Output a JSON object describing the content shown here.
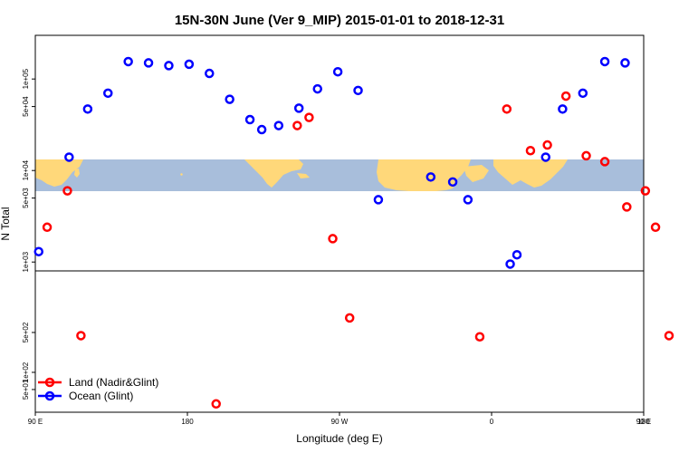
{
  "chart_data": {
    "type": "scatter",
    "title": "15N-30N June (Ver 9_MIP)   2015-01-01 to 2018-12-31",
    "xlabel": "Longitude (deg E)",
    "ylabel": "N Total",
    "x_axis": {
      "range_deg_east": [
        90,
        450
      ],
      "ticks": [
        {
          "value": 90,
          "label": "90 E"
        },
        {
          "value": 180,
          "label": "180"
        },
        {
          "value": 270,
          "label": "90 W"
        },
        {
          "value": 360,
          "label": "0"
        },
        {
          "value": 450,
          "label": "90 E"
        },
        {
          "value": 540,
          "label": "180"
        }
      ]
    },
    "lower_panel": {
      "scale": "log",
      "ylim": [
        20,
        6000
      ],
      "ticks": [
        {
          "value": 50,
          "label": "5e+01"
        },
        {
          "value": 100,
          "label": "1e+02"
        },
        {
          "value": 500,
          "label": "5e+02"
        }
      ]
    },
    "upper_panel": {
      "scale": "log",
      "ylim": [
        800,
        300000
      ],
      "ticks": [
        {
          "value": 1000,
          "label": "1e+03"
        },
        {
          "value": 5000,
          "label": "5e+03"
        },
        {
          "value": 10000,
          "label": "1e+04"
        },
        {
          "value": 50000,
          "label": "5e+04"
        },
        {
          "value": 100000,
          "label": "1e+05"
        }
      ]
    },
    "series": [
      {
        "name": "Land (Nadir&Glint)",
        "color": "#ff0000",
        "points": [
          {
            "lon": 97,
            "panel": "upper",
            "value": 2400
          },
          {
            "lon": 109,
            "panel": "upper",
            "value": 6000
          },
          {
            "lon": 117,
            "panel": "lower",
            "value": 440
          },
          {
            "lon": 197,
            "panel": "lower",
            "value": 28
          },
          {
            "lon": 245,
            "panel": "upper",
            "value": 31000
          },
          {
            "lon": 252,
            "panel": "upper",
            "value": 38000
          },
          {
            "lon": 266,
            "panel": "upper",
            "value": 1800
          },
          {
            "lon": 276,
            "panel": "lower",
            "value": 900
          },
          {
            "lon": 353,
            "panel": "lower",
            "value": 420
          },
          {
            "lon": 369,
            "panel": "upper",
            "value": 47000
          },
          {
            "lon": 383,
            "panel": "upper",
            "value": 16500
          },
          {
            "lon": 393,
            "panel": "upper",
            "value": 19000
          },
          {
            "lon": 404,
            "panel": "upper",
            "value": 65000
          },
          {
            "lon": 416,
            "panel": "upper",
            "value": 14500
          },
          {
            "lon": 427,
            "panel": "upper",
            "value": 12500
          },
          {
            "lon": 440,
            "panel": "upper",
            "value": 4000
          },
          {
            "lon": 451,
            "panel": "upper",
            "value": 6000
          },
          {
            "lon": 457,
            "panel": "upper",
            "value": 2400
          },
          {
            "lon": 465,
            "panel": "lower",
            "value": 440
          }
        ]
      },
      {
        "name": "Ocean (Glint)",
        "color": "#0000ff",
        "points": [
          {
            "lon": 92,
            "panel": "upper",
            "value": 1300
          },
          {
            "lon": 110,
            "panel": "upper",
            "value": 14000
          },
          {
            "lon": 121,
            "panel": "upper",
            "value": 47000
          },
          {
            "lon": 133,
            "panel": "upper",
            "value": 70000
          },
          {
            "lon": 145,
            "panel": "upper",
            "value": 155000
          },
          {
            "lon": 157,
            "panel": "upper",
            "value": 150000
          },
          {
            "lon": 169,
            "panel": "upper",
            "value": 140000
          },
          {
            "lon": 181,
            "panel": "upper",
            "value": 145000
          },
          {
            "lon": 193,
            "panel": "upper",
            "value": 115000
          },
          {
            "lon": 205,
            "panel": "upper",
            "value": 60000
          },
          {
            "lon": 217,
            "panel": "upper",
            "value": 36000
          },
          {
            "lon": 224,
            "panel": "upper",
            "value": 28000
          },
          {
            "lon": 234,
            "panel": "upper",
            "value": 31000
          },
          {
            "lon": 246,
            "panel": "upper",
            "value": 48000
          },
          {
            "lon": 257,
            "panel": "upper",
            "value": 78000
          },
          {
            "lon": 269,
            "panel": "upper",
            "value": 120000
          },
          {
            "lon": 281,
            "panel": "upper",
            "value": 75000
          },
          {
            "lon": 293,
            "panel": "upper",
            "value": 4800
          },
          {
            "lon": 324,
            "panel": "upper",
            "value": 8500
          },
          {
            "lon": 337,
            "panel": "upper",
            "value": 7500
          },
          {
            "lon": 346,
            "panel": "upper",
            "value": 4800
          },
          {
            "lon": 371,
            "panel": "upper",
            "value": 950
          },
          {
            "lon": 375,
            "panel": "upper",
            "value": 1200
          },
          {
            "lon": 392,
            "panel": "upper",
            "value": 14000
          },
          {
            "lon": 402,
            "panel": "upper",
            "value": 47000
          },
          {
            "lon": 414,
            "panel": "upper",
            "value": 70000
          },
          {
            "lon": 427,
            "panel": "upper",
            "value": 155000
          },
          {
            "lon": 439,
            "panel": "upper",
            "value": 150000
          }
        ]
      }
    ],
    "legend": {
      "placement": "bottom-left",
      "entries": [
        "Land (Nadir&Glint)",
        "Ocean (Glint)"
      ]
    },
    "background_map": {
      "land_color": "#ffd87a",
      "ocean_color": "#a8bedb"
    }
  }
}
